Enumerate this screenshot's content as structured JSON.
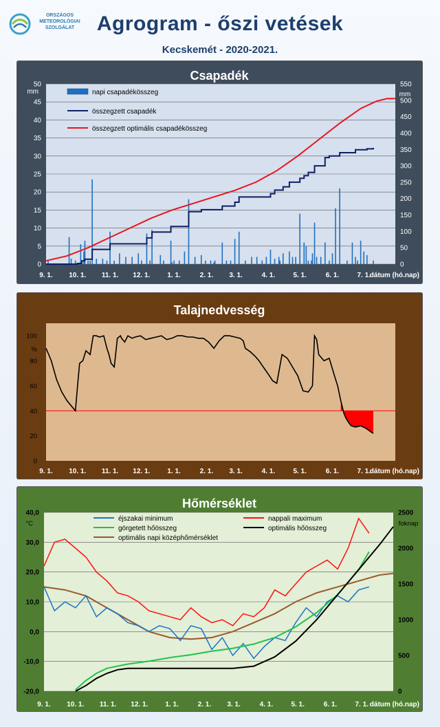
{
  "header": {
    "logo_lines": [
      "ORSZÁGOS",
      "METEOROLÓGIAI",
      "SZOLGÁLAT"
    ],
    "title": "Agrogram - őszi vetések",
    "subtitle": "Kecskemét - 2020-2021."
  },
  "colors": {
    "precip_bar": "#1f6fbf",
    "cum_precip": "#0d1f66",
    "optimal_precip": "#e8141e",
    "soil_line": "#000000",
    "soil_threshold": "#ff0000",
    "tmin": "#1a73c9",
    "tmax": "#ff1010",
    "heat_sum": "#1fc24a",
    "opt_heat_sum": "#000000",
    "opt_daily_mean": "#9a5a2a"
  },
  "chart_data": [
    {
      "type": "bar",
      "title": "Csapadék",
      "x_axis": {
        "ticks": [
          "9. 1.",
          "10. 1.",
          "11. 1.",
          "12. 1.",
          "1. 1.",
          "2. 1.",
          "3. 1.",
          "4. 1.",
          "5. 1.",
          "6. 1.",
          "7. 1."
        ],
        "label": "dátum (hó.nap)",
        "range_days": [
          0,
          333
        ]
      },
      "y_left": {
        "unit": "mm",
        "range": [
          0,
          50
        ],
        "ticks": [
          "0",
          "5",
          "10",
          "15",
          "20",
          "25",
          "30",
          "35",
          "40",
          "45",
          "50"
        ]
      },
      "y_right": {
        "unit": "mm",
        "range": [
          0,
          550
        ],
        "ticks": [
          "0",
          "50",
          "100",
          "150",
          "200",
          "250",
          "300",
          "350",
          "400",
          "450",
          "500",
          "550"
        ]
      },
      "legend": [
        "napi csapadékösszeg",
        "összegzett csapadék",
        "összegzett optimális csapadékösszeg"
      ],
      "legend_position": "top-left",
      "grid": true,
      "series": [
        {
          "name": "napi csapadékösszeg",
          "kind": "bar",
          "axis": "left",
          "day": [
            2,
            22,
            24,
            28,
            33,
            36,
            37,
            40,
            42,
            44,
            48,
            54,
            58,
            61,
            65,
            70,
            76,
            82,
            88,
            91,
            96,
            99,
            101,
            109,
            112,
            119,
            120,
            122,
            127,
            132,
            136,
            142,
            148,
            152,
            157,
            160,
            161,
            168,
            172,
            176,
            180,
            184,
            190,
            196,
            201,
            206,
            210,
            214,
            218,
            222,
            223,
            226,
            232,
            235,
            238,
            242,
            246,
            248,
            250,
            253,
            254,
            256,
            258,
            262,
            266,
            270,
            273,
            276,
            280,
            287,
            292,
            295,
            297,
            300,
            303,
            306,
            312
          ],
          "values": [
            1.0,
            7.5,
            1.5,
            1.0,
            5.5,
            3.5,
            6.5,
            1.0,
            1.0,
            23.5,
            1.5,
            1.5,
            1.0,
            9.0,
            1.0,
            3.0,
            2.0,
            2.0,
            3.0,
            1.0,
            8.5,
            1.0,
            9.5,
            2.5,
            1.0,
            6.5,
            0.5,
            1.0,
            1.0,
            3.5,
            18.0,
            2.0,
            2.5,
            1.0,
            1.0,
            0.5,
            1.0,
            6.0,
            1.0,
            1.0,
            7.0,
            9.0,
            1.0,
            2.0,
            2.0,
            1.0,
            2.0,
            4.0,
            1.5,
            2.0,
            1.0,
            3.0,
            3.5,
            2.0,
            2.0,
            14.0,
            6.0,
            5.0,
            1.0,
            1.0,
            3.0,
            11.5,
            2.0,
            2.0,
            6.0,
            1.0,
            3.0,
            15.5,
            21.0,
            1.0,
            6.0,
            2.0,
            1.0,
            6.5,
            3.5,
            2.5,
            1.0
          ]
        },
        {
          "name": "összegzett csapadék",
          "kind": "line",
          "axis": "right",
          "day": [
            0,
            30,
            34,
            37,
            44,
            61,
            96,
            101,
            119,
            136,
            148,
            168,
            180,
            184,
            214,
            218,
            226,
            232,
            242,
            246,
            250,
            256,
            266,
            270,
            280,
            295,
            306,
            312
          ],
          "values": [
            0,
            2,
            10,
            15,
            45,
            62,
            80,
            98,
            115,
            160,
            166,
            177,
            189,
            205,
            215,
            226,
            236,
            250,
            262,
            270,
            280,
            300,
            325,
            330,
            340,
            349,
            352,
            355
          ]
        },
        {
          "name": "összegzett optimális csapadékösszeg",
          "kind": "line",
          "axis": "right",
          "day": [
            0,
            20,
            40,
            60,
            80,
            100,
            120,
            140,
            160,
            180,
            200,
            220,
            240,
            260,
            280,
            300,
            315,
            325,
            333
          ],
          "values": [
            10,
            25,
            50,
            80,
            110,
            140,
            165,
            185,
            205,
            225,
            250,
            285,
            330,
            380,
            430,
            475,
            497,
            505,
            505
          ]
        }
      ]
    },
    {
      "type": "line",
      "title": "Talajnedvesség",
      "x_axis": {
        "ticks": [
          "9. 1.",
          "10. 1.",
          "11. 1.",
          "12. 1.",
          "1. 1.",
          "2. 1.",
          "3. 1.",
          "4. 1.",
          "5. 1.",
          "6. 1.",
          "7. 1."
        ],
        "label": "dátum (hó.nap)",
        "range_days": [
          0,
          333
        ]
      },
      "y_left": {
        "unit": "%",
        "range": [
          0,
          110
        ],
        "ticks": [
          "0",
          "20",
          "40",
          "60",
          "80",
          "100"
        ]
      },
      "threshold": 40,
      "grid": false,
      "series": [
        {
          "name": "",
          "day": [
            0,
            5,
            10,
            15,
            20,
            25,
            28,
            30,
            32,
            35,
            38,
            42,
            45,
            48,
            51,
            55,
            58,
            60,
            62,
            65,
            68,
            71,
            72,
            75,
            78,
            82,
            85,
            90,
            95,
            100,
            105,
            110,
            115,
            120,
            125,
            130,
            135,
            140,
            145,
            150,
            155,
            160,
            165,
            170,
            175,
            180,
            185,
            188,
            190,
            195,
            200,
            203,
            208,
            213,
            216,
            220,
            225,
            230,
            235,
            240,
            245,
            250,
            254,
            256,
            258,
            260,
            265,
            270,
            275,
            278,
            281,
            284,
            286,
            289,
            291,
            295,
            300,
            305,
            310,
            312
          ],
          "values": [
            90,
            80,
            65,
            55,
            48,
            43,
            40,
            60,
            78,
            80,
            88,
            85,
            100,
            100,
            99,
            100,
            90,
            85,
            78,
            75,
            98,
            100,
            98,
            95,
            100,
            98,
            99,
            100,
            97,
            98,
            99,
            100,
            97,
            98,
            100,
            100,
            99,
            99,
            98,
            98,
            95,
            90,
            96,
            100,
            100,
            99,
            98,
            96,
            90,
            87,
            83,
            80,
            74,
            68,
            64,
            62,
            85,
            82,
            75,
            68,
            56,
            55,
            60,
            100,
            97,
            85,
            80,
            82,
            68,
            60,
            48,
            38,
            34,
            30,
            28,
            27,
            28,
            26,
            23,
            22
          ]
        }
      ]
    },
    {
      "type": "line",
      "title": "Hőmérséklet",
      "x_axis": {
        "ticks": [
          "9. 1.",
          "10. 1.",
          "11. 1.",
          "12. 1.",
          "1. 1.",
          "2. 1.",
          "3. 1.",
          "4. 1.",
          "5. 1.",
          "6. 1.",
          "7. 1."
        ],
        "label": "dátum (hó.nap)",
        "range_days": [
          0,
          333
        ]
      },
      "y_left": {
        "unit": "°C",
        "range": [
          -20,
          40
        ],
        "ticks": [
          "-20,0",
          "-10,0",
          "0,0",
          "10,0",
          "20,0",
          "30,0",
          "40,0"
        ]
      },
      "y_right": {
        "unit": "foknap",
        "range": [
          0,
          2500
        ],
        "ticks": [
          "0",
          "500",
          "1000",
          "1500",
          "2000",
          "2500"
        ]
      },
      "legend": [
        "éjszakai minimum",
        "nappali maximum",
        "görgetett hőösszeg",
        "optimális hőösszeg",
        "optimális napi középhőmérséklet"
      ],
      "legend_position": "top",
      "grid": true,
      "series": [
        {
          "name": "éjszakai minimum",
          "axis": "left",
          "day": [
            0,
            10,
            20,
            30,
            40,
            50,
            60,
            70,
            80,
            90,
            100,
            110,
            120,
            130,
            140,
            150,
            160,
            170,
            180,
            190,
            200,
            210,
            220,
            230,
            240,
            250,
            260,
            270,
            280,
            290,
            300,
            310
          ],
          "values": [
            15,
            7,
            10,
            8,
            12,
            5,
            8,
            6,
            3,
            2,
            0,
            2,
            1,
            -3,
            2,
            1,
            -6,
            -2,
            -8,
            -4,
            -9,
            -5,
            -2,
            -3,
            3,
            8,
            5,
            10,
            12,
            10,
            14,
            15
          ]
        },
        {
          "name": "nappali maximum",
          "axis": "left",
          "day": [
            0,
            10,
            20,
            30,
            40,
            50,
            60,
            70,
            80,
            90,
            100,
            110,
            120,
            130,
            140,
            150,
            160,
            170,
            180,
            190,
            200,
            210,
            220,
            230,
            240,
            250,
            260,
            270,
            280,
            290,
            300,
            310
          ],
          "values": [
            22,
            30,
            31,
            28,
            25,
            20,
            17,
            13,
            12,
            10,
            7,
            6,
            5,
            4,
            8,
            5,
            3,
            4,
            2,
            6,
            5,
            8,
            14,
            12,
            16,
            20,
            22,
            24,
            21,
            28,
            38,
            33
          ]
        },
        {
          "name": "görgetett hőösszeg",
          "axis": "right",
          "day": [
            30,
            40,
            50,
            60,
            80,
            100,
            120,
            140,
            160,
            180,
            200,
            220,
            240,
            260,
            280,
            300,
            310
          ],
          "values": [
            20,
            150,
            250,
            320,
            380,
            420,
            470,
            510,
            560,
            600,
            660,
            750,
            900,
            1100,
            1350,
            1700,
            1950
          ]
        },
        {
          "name": "optimális hőösszeg",
          "axis": "right",
          "day": [
            30,
            40,
            50,
            60,
            70,
            80,
            100,
            120,
            140,
            160,
            180,
            200,
            220,
            240,
            260,
            280,
            300,
            320,
            333
          ],
          "values": [
            0,
            80,
            180,
            250,
            300,
            320,
            320,
            320,
            320,
            320,
            320,
            350,
            480,
            700,
            1000,
            1350,
            1700,
            2050,
            2300
          ]
        },
        {
          "name": "optimális napi középhőmérséklet",
          "axis": "left",
          "day": [
            0,
            20,
            40,
            60,
            80,
            100,
            120,
            140,
            160,
            180,
            200,
            220,
            240,
            260,
            280,
            300,
            320,
            333
          ],
          "values": [
            15,
            14,
            12,
            8,
            4,
            0,
            -2,
            -2.5,
            -2,
            0,
            3,
            6,
            10,
            13,
            15,
            17,
            19,
            19.5
          ]
        }
      ]
    }
  ]
}
